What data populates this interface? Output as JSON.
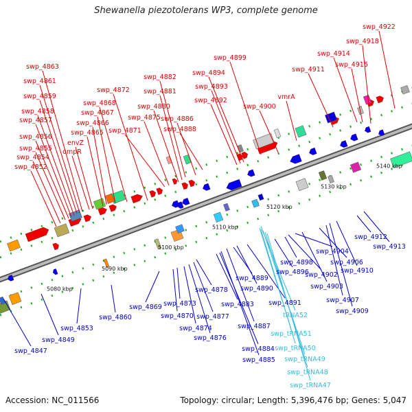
{
  "title": "Shewanella piezotolerans WP3, complete genome",
  "accession": "Accession: NC_011566",
  "topology": "Topology: circular; Length: 5,396,476 bp; Genes: 5,047",
  "colors": {
    "forward_label": "#dd0000",
    "reverse_label": "#0000cc",
    "trna_label": "#33bbdd",
    "backbone": "#888888",
    "dot_green": "#22aa22"
  },
  "ticks": [
    "5080 kbp",
    "5090 kbp",
    "5100 kbp",
    "5110 kbp",
    "5120 kbp",
    "5130 kbp",
    "5140 kbp"
  ],
  "forward_genes": [
    "swp_4852",
    "swp_4854",
    "swp_4855",
    "swp_4856",
    "swp_4857",
    "swp_4858",
    "swp_4859",
    "swp_4861",
    "swp_4863",
    "ompR",
    "envZ",
    "swp_4865",
    "swp_4866",
    "swp_4867",
    "swp_4868",
    "swp_4872",
    "swp_4871",
    "swp_4875",
    "swp_4880",
    "swp_4881",
    "swp_4882",
    "swp_4886",
    "swp_4888",
    "swp_4892",
    "swp_4893",
    "swp_4894",
    "swp_4899",
    "swp_4900",
    "vmrA",
    "swp_4911",
    "swp_4914",
    "swp_4916",
    "swp_4918",
    "swp_4922"
  ],
  "reverse_genes": [
    "swp_4847",
    "swp_4849",
    "swp_4853",
    "swp_4860",
    "swp_4869",
    "swp_4870",
    "swp_4873",
    "swp_4874",
    "swp_4876",
    "swp_4877",
    "swp_4878",
    "swp_4883",
    "swp_4884",
    "swp_4885",
    "swp_4887",
    "swp_4889",
    "swp_4890",
    "swp_4891",
    "swp_4896",
    "swp_4898",
    "swp_4902",
    "swp_4903",
    "swp_4904",
    "swp_4906",
    "swp_4907",
    "swp_4909",
    "swp_4910",
    "swp_4912",
    "swp_4913"
  ],
  "trna_genes": [
    "tRNA52",
    "swp_tRNA51",
    "swp_tRNA50",
    "swp_tRNA49",
    "swp_tRNA48",
    "swp_tRNA47"
  ]
}
